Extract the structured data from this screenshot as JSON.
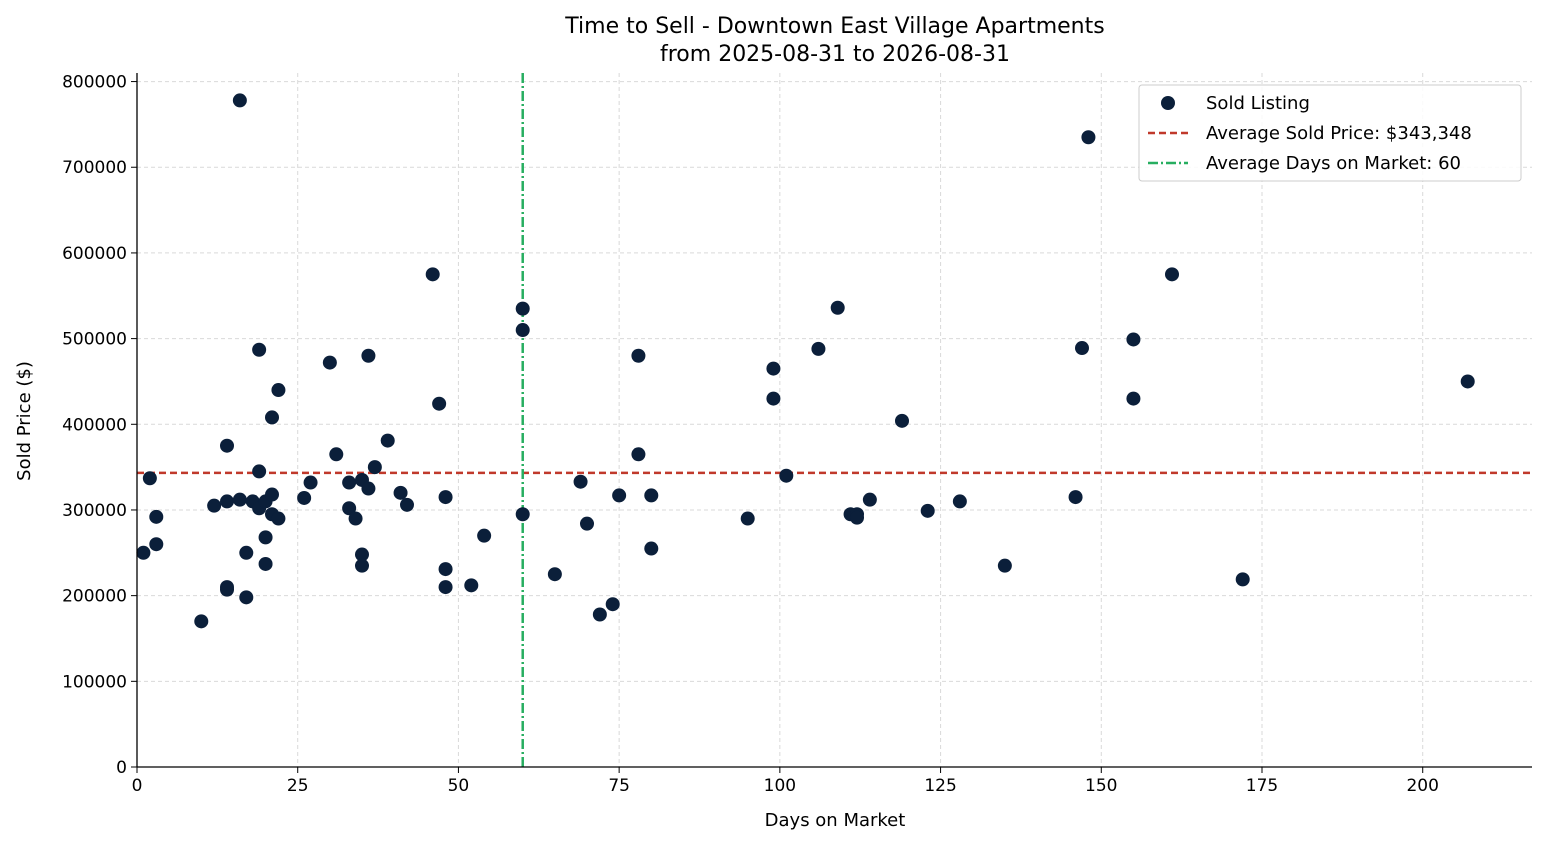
{
  "chart_data": {
    "type": "scatter",
    "title": "Time to Sell - Downtown East Village Apartments",
    "subtitle": "from 2025-08-31 to 2026-08-31",
    "xlabel": "Days on Market",
    "ylabel": "Sold Price ($)",
    "xlim": [
      0,
      217
    ],
    "ylim": [
      0,
      810000
    ],
    "xticks": [
      0,
      25,
      50,
      75,
      100,
      125,
      150,
      175,
      200
    ],
    "yticks": [
      0,
      100000,
      200000,
      300000,
      400000,
      500000,
      600000,
      700000,
      800000
    ],
    "grid": true,
    "legend_position": "top-right",
    "colors": {
      "points": "#0b1f3a",
      "avg_price": "#c0392b",
      "avg_days": "#27ae60"
    },
    "series": [
      {
        "name": "Sold Listing",
        "points": [
          [
            1,
            250000
          ],
          [
            2,
            337000
          ],
          [
            3,
            292000
          ],
          [
            3,
            260000
          ],
          [
            10,
            170000
          ],
          [
            12,
            305000
          ],
          [
            14,
            375000
          ],
          [
            14,
            310000
          ],
          [
            14,
            210000
          ],
          [
            14,
            207000
          ],
          [
            16,
            778000
          ],
          [
            16,
            312000
          ],
          [
            17,
            250000
          ],
          [
            17,
            198000
          ],
          [
            18,
            310000
          ],
          [
            19,
            487000
          ],
          [
            19,
            345000
          ],
          [
            19,
            302000
          ],
          [
            20,
            268000
          ],
          [
            20,
            237000
          ],
          [
            20,
            310000
          ],
          [
            21,
            408000
          ],
          [
            21,
            318000
          ],
          [
            21,
            295000
          ],
          [
            22,
            440000
          ],
          [
            22,
            290000
          ],
          [
            26,
            314000
          ],
          [
            27,
            332000
          ],
          [
            30,
            472000
          ],
          [
            31,
            365000
          ],
          [
            33,
            332000
          ],
          [
            33,
            302000
          ],
          [
            34,
            290000
          ],
          [
            35,
            335000
          ],
          [
            35,
            248000
          ],
          [
            35,
            235000
          ],
          [
            36,
            480000
          ],
          [
            36,
            325000
          ],
          [
            37,
            350000
          ],
          [
            39,
            381000
          ],
          [
            41,
            320000
          ],
          [
            42,
            306000
          ],
          [
            46,
            575000
          ],
          [
            47,
            424000
          ],
          [
            48,
            315000
          ],
          [
            48,
            231000
          ],
          [
            48,
            210000
          ],
          [
            52,
            212000
          ],
          [
            54,
            270000
          ],
          [
            60,
            535000
          ],
          [
            60,
            510000
          ],
          [
            60,
            295000
          ],
          [
            65,
            225000
          ],
          [
            69,
            333000
          ],
          [
            70,
            284000
          ],
          [
            72,
            178000
          ],
          [
            74,
            190000
          ],
          [
            75,
            317000
          ],
          [
            78,
            480000
          ],
          [
            78,
            365000
          ],
          [
            80,
            317000
          ],
          [
            80,
            255000
          ],
          [
            95,
            290000
          ],
          [
            99,
            465000
          ],
          [
            99,
            430000
          ],
          [
            101,
            340000
          ],
          [
            106,
            488000
          ],
          [
            109,
            536000
          ],
          [
            111,
            295000
          ],
          [
            112,
            295000
          ],
          [
            112,
            291000
          ],
          [
            114,
            312000
          ],
          [
            119,
            404000
          ],
          [
            123,
            299000
          ],
          [
            128,
            310000
          ],
          [
            135,
            235000
          ],
          [
            146,
            315000
          ],
          [
            147,
            489000
          ],
          [
            148,
            735000
          ],
          [
            155,
            499000
          ],
          [
            155,
            430000
          ],
          [
            161,
            575000
          ],
          [
            172,
            219000
          ],
          [
            207,
            450000
          ]
        ]
      }
    ],
    "reference_lines": {
      "avg_price": {
        "label": "Average Sold Price: $343,348",
        "value": 343348
      },
      "avg_days": {
        "label": "Average Days on Market: 60",
        "value": 60
      }
    }
  }
}
